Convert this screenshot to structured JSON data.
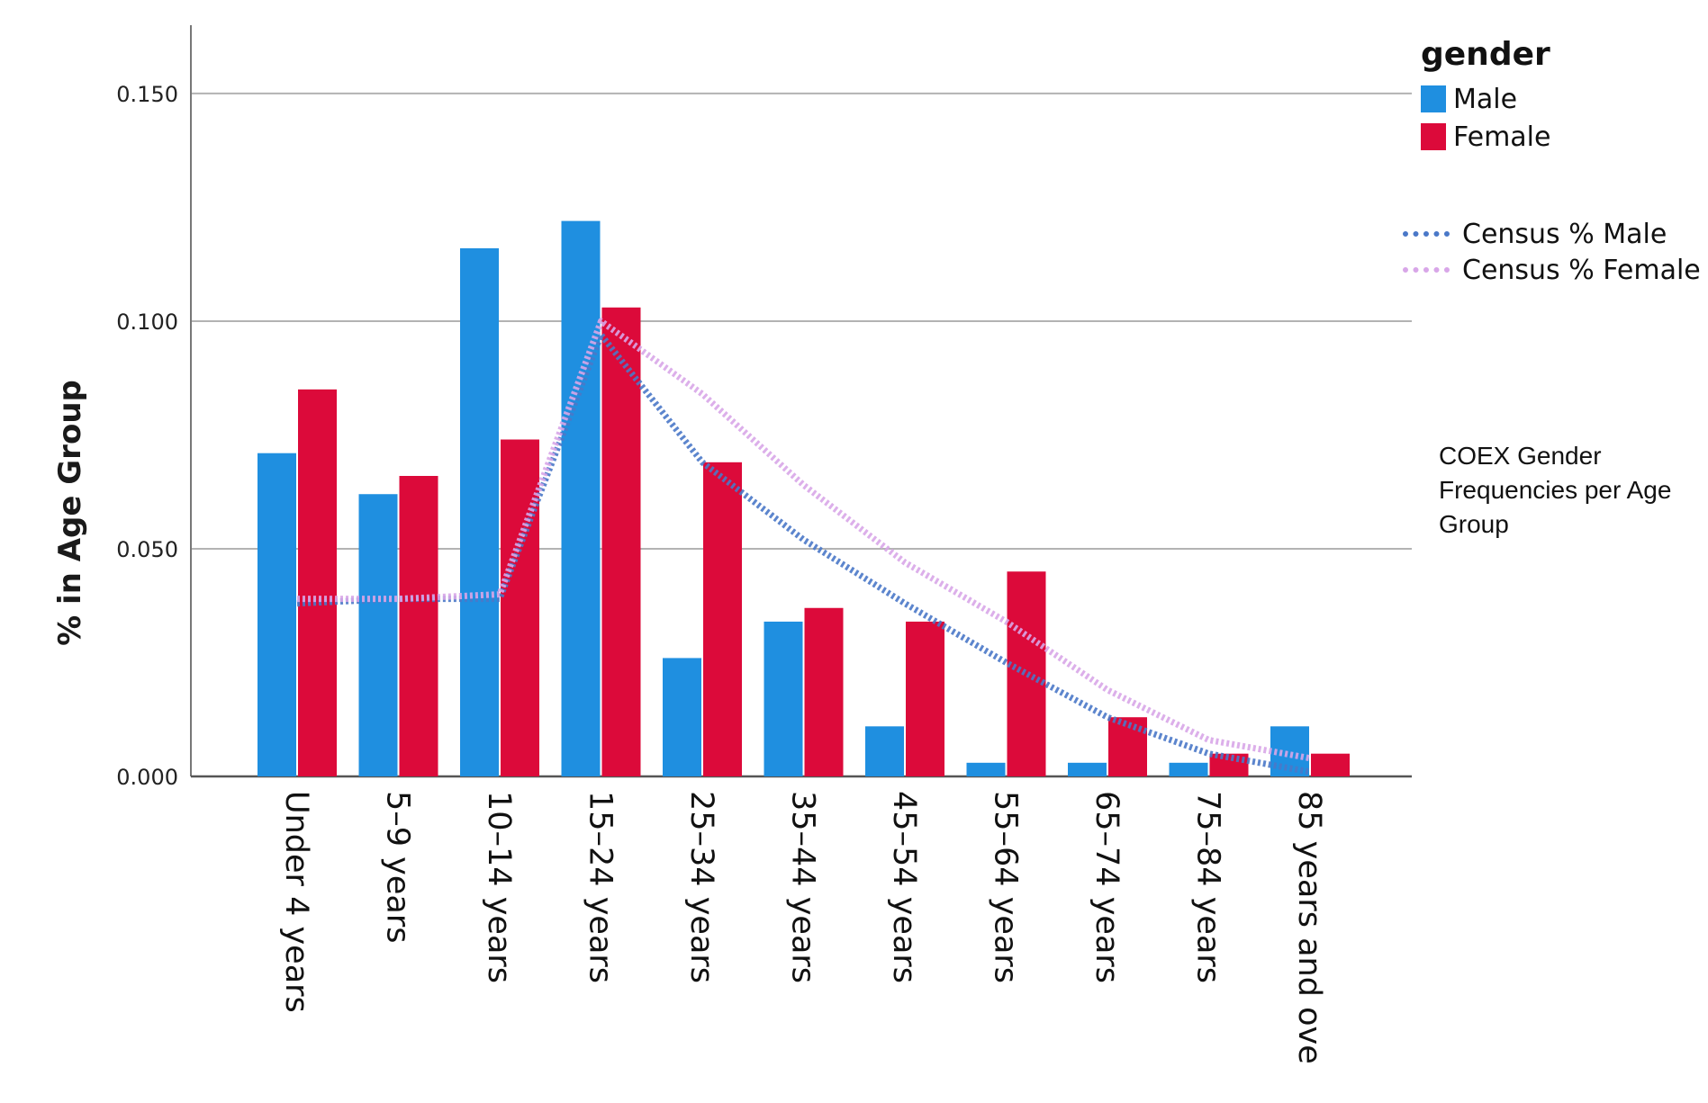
{
  "chart_data": {
    "type": "bar",
    "title": "",
    "ylabel": "% in Age Group",
    "xlabel": "",
    "ylim": [
      0,
      0.165
    ],
    "yticks": [
      "0.000",
      "0.050",
      "0.100",
      "0.150"
    ],
    "ytick_values": [
      0,
      0.05,
      0.1,
      0.15
    ],
    "categories": [
      "Under 4 years",
      "5–9 years",
      "10–14 years",
      "15–24 years",
      "25–34 years",
      "35–44 years",
      "45–54 years",
      "55–64 years",
      "65–74 years",
      "75–84 years",
      "85 years and ove"
    ],
    "series": [
      {
        "name": "Male",
        "color": "#1f8fe0",
        "values": [
          0.071,
          0.062,
          0.116,
          0.122,
          0.026,
          0.034,
          0.011,
          0.003,
          0.003,
          0.003,
          0.011
        ]
      },
      {
        "name": "Female",
        "color": "#dc0a3a",
        "values": [
          0.085,
          0.066,
          0.074,
          0.103,
          0.069,
          0.037,
          0.034,
          0.045,
          0.013,
          0.005,
          0.005
        ]
      }
    ],
    "lines": [
      {
        "name": "Census % Male",
        "color": "#4a78c8",
        "values": [
          0.038,
          0.039,
          0.039,
          0.097,
          0.069,
          0.052,
          0.038,
          0.025,
          0.013,
          0.005,
          0.001
        ]
      },
      {
        "name": "Census % Female",
        "color": "#d8a6e8",
        "values": [
          0.039,
          0.039,
          0.04,
          0.1,
          0.084,
          0.064,
          0.047,
          0.034,
          0.019,
          0.008,
          0.004
        ]
      }
    ],
    "grid": true,
    "legend_position": "right"
  },
  "legend": {
    "title": "gender",
    "items": [
      {
        "label": "Male",
        "color": "#1f8fe0"
      },
      {
        "label": "Female",
        "color": "#dc0a3a"
      }
    ],
    "line_items": [
      {
        "label": "Census % Male",
        "color": "#4a78c8"
      },
      {
        "label": "Census % Female",
        "color": "#d8a6e8"
      }
    ]
  },
  "note": "COEX Gender Frequencies per Age Group"
}
